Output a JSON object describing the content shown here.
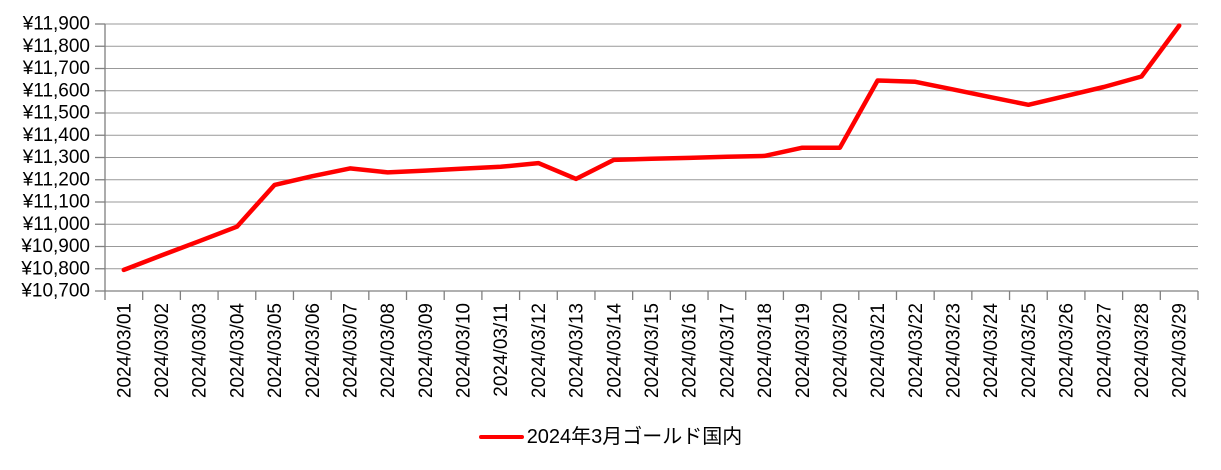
{
  "chart_data": {
    "type": "line",
    "title": "",
    "legend": {
      "label": "2024年3月ゴールド国内",
      "position": "bottom-center",
      "swatch": "red-line"
    },
    "categories": [
      "2024/03/01",
      "2024/03/02",
      "2024/03/03",
      "2024/03/04",
      "2024/03/05",
      "2024/03/06",
      "2024/03/07",
      "2024/03/08",
      "2024/03/09",
      "2024/03/10",
      "2024/03/11",
      "2024/03/12",
      "2024/03/13",
      "2024/03/14",
      "2024/03/15",
      "2024/03/16",
      "2024/03/17",
      "2024/03/18",
      "2024/03/19",
      "2024/03/20",
      "2024/03/21",
      "2024/03/22",
      "2024/03/23",
      "2024/03/24",
      "2024/03/25",
      "2024/03/26",
      "2024/03/27",
      "2024/03/28",
      "2024/03/29"
    ],
    "series": [
      {
        "name": "2024年3月ゴールド国内",
        "color": "#ff0000",
        "values": [
          10795,
          10860,
          10924,
          10989,
          11177,
          11216,
          11251,
          11233,
          11241,
          11250,
          11258,
          11275,
          11204,
          11289,
          11294,
          11298,
          11303,
          11307,
          11344,
          11344,
          11646,
          11640,
          11606,
          11571,
          11537,
          11577,
          11617,
          11664,
          11893
        ]
      }
    ],
    "y_axis": {
      "min": 10700,
      "max": 11900,
      "step": 100,
      "prefix": "¥",
      "tick_labels": [
        "¥10,700",
        "¥10,800",
        "¥10,900",
        "¥11,000",
        "¥11,100",
        "¥11,200",
        "¥11,300",
        "¥11,400",
        "¥11,500",
        "¥11,600",
        "¥11,700",
        "¥11,800",
        "¥11,900"
      ]
    },
    "x_axis": {
      "label_rotation_degrees": -90
    },
    "grid": "horizontal",
    "legend_position": "bottom",
    "ylim": [
      10700,
      11900
    ],
    "colors": {
      "line": "#ff0000",
      "gridline": "#999999",
      "axis": "#808080",
      "text": "#000000",
      "background": "#ffffff"
    }
  }
}
